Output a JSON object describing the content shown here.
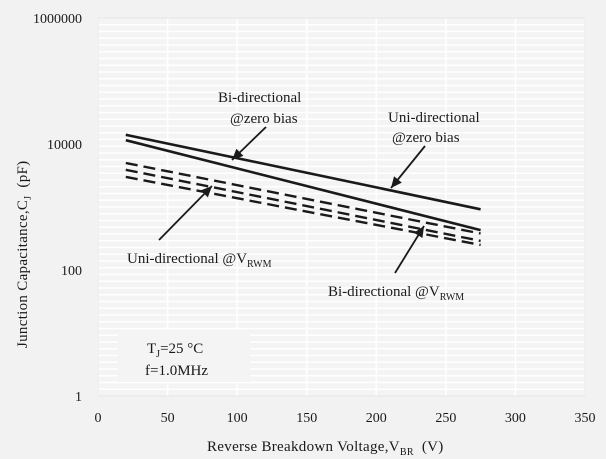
{
  "chart_data": {
    "type": "line",
    "xlabel": "Reverse Breakdown Voltage,V",
    "xlabel_sub": "BR",
    "xlabel_unit": "(V)",
    "ylabel": "Junction Capacitance,C",
    "ylabel_sub": "J",
    "ylabel_unit": "(pF)",
    "xlim": [
      0,
      350
    ],
    "ylim": [
      1,
      1000000
    ],
    "yscale": "log",
    "x_ticks": [
      0,
      50,
      100,
      150,
      200,
      250,
      300,
      350
    ],
    "x_tick_labels": [
      "0",
      "50",
      "100",
      "150",
      "200",
      "250",
      "300",
      "350"
    ],
    "y_ticks": [
      1,
      100,
      10000,
      1000000
    ],
    "y_tick_labels": [
      "1",
      "100",
      "10000",
      "1000000"
    ],
    "grid": true,
    "series": [
      {
        "style": "solid",
        "x": [
          20,
          275
        ],
        "y": [
          14000,
          920
        ]
      },
      {
        "style": "solid",
        "x": [
          20,
          275
        ],
        "y": [
          11500,
          430
        ]
      },
      {
        "style": "dashed",
        "x": [
          20,
          275
        ],
        "y": [
          5000,
          380
        ]
      },
      {
        "style": "dashed",
        "x": [
          20,
          275
        ],
        "y": [
          3900,
          290
        ]
      },
      {
        "style": "dashed",
        "x": [
          20,
          275
        ],
        "y": [
          3000,
          250
        ]
      }
    ],
    "annotations": [
      {
        "lines": [
          "Bi-directional",
          "@zero bias"
        ]
      },
      {
        "lines": [
          "Uni-directional",
          "@zero bias"
        ]
      },
      {
        "text": "Uni-directional @V",
        "sub": "RWM"
      },
      {
        "text": "Bi-directional @V",
        "sub": "RWM"
      }
    ],
    "conditions": [
      {
        "text": "T",
        "sub": "J",
        "rest": "=25 °C"
      },
      {
        "text": "f=1.0MHz"
      }
    ],
    "colors": {
      "background": "#f2f2f2",
      "plot_background": "#f4f4f4",
      "grid": "#ffffff",
      "series": "#1a1a1a"
    }
  }
}
